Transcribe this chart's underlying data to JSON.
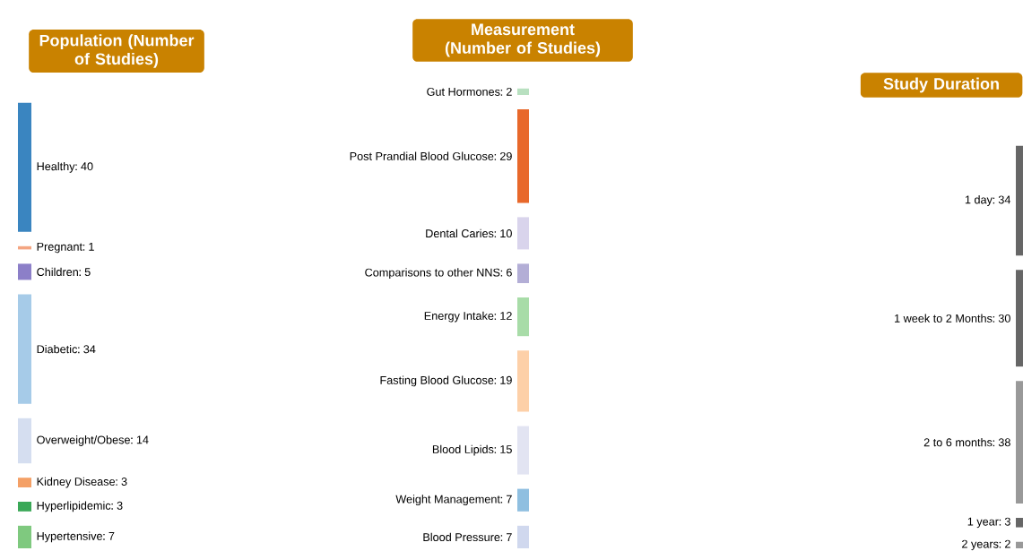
{
  "chart_data": [
    {
      "type": "other",
      "title": "Population (Number of Studies)",
      "categories": [
        "Healthy",
        "Pregnant",
        "Children",
        "Diabetic",
        "Overweight/Obese",
        "Kidney Disease",
        "Hyperlipidemic",
        "Hypertensive"
      ],
      "values": [
        40,
        1,
        5,
        34,
        14,
        3,
        3,
        7
      ],
      "data_labels": true,
      "colors": [
        "#3a85c0",
        "#f4a582",
        "#8c7fc8",
        "#a6cbe8",
        "#d5def0",
        "#f4a066",
        "#3aa857",
        "#7fc97f"
      ]
    },
    {
      "type": "other",
      "title": "Measurement (Number of Studies)",
      "categories": [
        "Gut Hormones",
        "Post Prandial Blood Glucose",
        "Dental Caries",
        "Comparisons to other NNS",
        "Energy Intake",
        "Fasting Blood Glucose",
        "Blood Lipids",
        "Weight Management",
        "Blood Pressure"
      ],
      "values": [
        2,
        29,
        10,
        6,
        12,
        19,
        15,
        7,
        7
      ],
      "data_labels": true,
      "colors": [
        "#b8e0c0",
        "#e8682a",
        "#d9d4ec",
        "#b3aed6",
        "#a8dca8",
        "#fdd0a8",
        "#e2e4f2",
        "#8fbfe0",
        "#d0d8ee"
      ]
    },
    {
      "type": "other",
      "title": "Study Duration",
      "categories": [
        "1 day",
        "1 week to 2 Months",
        "2 to 6 months",
        "1 year",
        "2 years"
      ],
      "values": [
        34,
        30,
        38,
        3,
        2
      ],
      "data_labels": true,
      "colors": [
        "#666666",
        "#666666",
        "#999999",
        "#666666",
        "#999999"
      ]
    }
  ]
}
